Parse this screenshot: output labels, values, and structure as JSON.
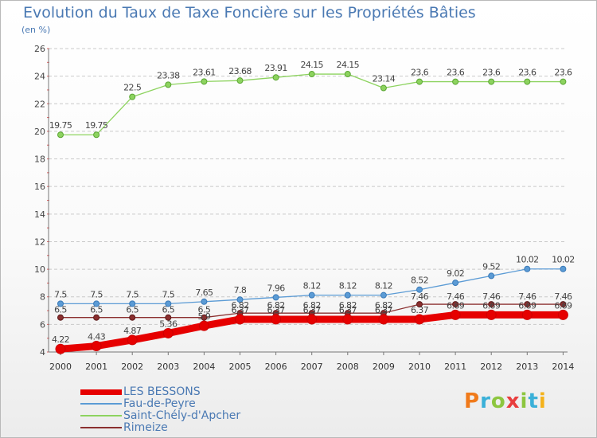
{
  "header": {
    "title": "Evolution du Taux de Taxe Foncière sur les Propriétés Bâties",
    "unit": "(en %)"
  },
  "logo": {
    "letters": [
      "P",
      "r",
      "o",
      "x",
      "i",
      "t",
      "i"
    ],
    "colors": [
      "#f07a1a",
      "#3ab0d8",
      "#8dc63f",
      "#e83d3d",
      "#8dc63f",
      "#3ab0d8",
      "#f4b21b"
    ]
  },
  "chart_data": {
    "type": "line",
    "title": "Evolution du Taux de Taxe Foncière sur les Propriétés Bâties",
    "ylabel": "(en %)",
    "xlabel": "",
    "ylim": [
      4,
      26
    ],
    "yticks": [
      4,
      6,
      8,
      10,
      12,
      14,
      16,
      18,
      20,
      22,
      24,
      26
    ],
    "grid": "horizontal dashed",
    "legend_position": "bottom-left",
    "x": [
      "2000",
      "2001",
      "2002",
      "2003",
      "2004",
      "2005",
      "2006",
      "2007",
      "2008",
      "2009",
      "2010",
      "2011",
      "2012",
      "2013",
      "2014"
    ],
    "series": [
      {
        "name": "LES BESSONS",
        "color": "#e60000",
        "values": [
          4.22,
          4.43,
          4.87,
          5.36,
          5.9,
          6.37,
          6.37,
          6.37,
          6.37,
          6.37,
          6.37,
          6.69,
          6.69,
          6.69,
          6.69
        ],
        "labels": [
          "4.22",
          "4.43",
          "4.87",
          "5.36",
          "5.9",
          "6.37",
          "6.37",
          "6.37",
          "6.37",
          "6.37",
          "6.37",
          "6.69",
          "6.69",
          "6.69",
          "6.69"
        ]
      },
      {
        "name": "Fau-de-Peyre",
        "color": "#5b9bd5",
        "values": [
          7.5,
          7.5,
          7.5,
          7.5,
          7.65,
          7.8,
          7.96,
          8.12,
          8.12,
          8.12,
          8.52,
          9.02,
          9.52,
          10.02,
          10.02
        ],
        "labels": [
          "7.5",
          "7.5",
          "7.5",
          "7.5",
          "7.65",
          "7.8",
          "7.96",
          "8.12",
          "8.12",
          "8.12",
          "8.52",
          "9.02",
          "9.52",
          "10.02",
          "10.02"
        ]
      },
      {
        "name": "Saint-Chély-d'Apcher",
        "color": "#8dd35f",
        "values": [
          19.75,
          19.75,
          22.5,
          23.38,
          23.61,
          23.68,
          23.91,
          24.15,
          24.15,
          23.14,
          23.6,
          23.6,
          23.6,
          23.6,
          23.6
        ],
        "labels": [
          "19.75",
          "19.75",
          "22.5",
          "23.38",
          "23.61",
          "23.68",
          "23.91",
          "24.15",
          "24.15",
          "23.14",
          "23.6",
          "23.6",
          "23.6",
          "23.6",
          "23.6"
        ]
      },
      {
        "name": "Rimeize",
        "color": "#8b2f2f",
        "values": [
          6.5,
          6.5,
          6.5,
          6.5,
          6.5,
          6.82,
          6.82,
          6.82,
          6.82,
          6.82,
          7.46,
          7.46,
          7.46,
          7.46,
          7.46
        ],
        "labels": [
          "6.5",
          "6.5",
          "6.5",
          "6.5",
          "6.5",
          "6.82",
          "6.82",
          "6.82",
          "6.82",
          "6.82",
          "7.46",
          "7.46",
          "7.46",
          "7.46",
          "7.46"
        ]
      }
    ]
  }
}
